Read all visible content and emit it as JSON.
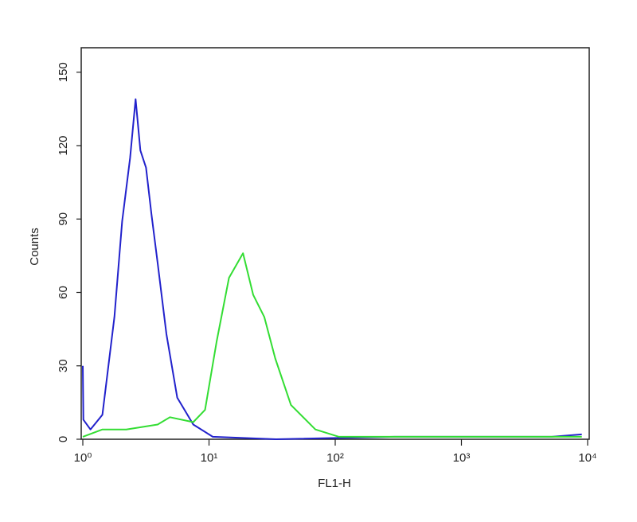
{
  "chart_data": {
    "type": "line",
    "xlabel": "FL1-H",
    "ylabel": "Counts",
    "xscale": "log",
    "xlim": [
      1,
      10000
    ],
    "ylim": [
      0,
      160
    ],
    "xticks": [
      {
        "value": 1,
        "label": "10⁰"
      },
      {
        "value": 10,
        "label": "10¹"
      },
      {
        "value": 100,
        "label": "10²"
      },
      {
        "value": 1000,
        "label": "10³"
      },
      {
        "value": 10000,
        "label": "10⁴"
      }
    ],
    "yticks": [
      0,
      30,
      60,
      90,
      120,
      150
    ],
    "series": [
      {
        "color": "#2222cc",
        "x": [
          1.0,
          1.01,
          1.15,
          1.43,
          1.78,
          2.05,
          2.37,
          2.62,
          2.86,
          3.17,
          3.5,
          3.92,
          4.6,
          5.6,
          7.5,
          10.7,
          34,
          295,
          5200,
          9000
        ],
        "values": [
          30,
          8,
          4,
          10,
          50,
          89,
          115,
          139,
          118,
          111,
          92,
          72,
          43,
          17,
          6,
          1,
          0,
          1,
          1,
          2
        ]
      },
      {
        "color": "#33dd33",
        "x": [
          1.0,
          1.43,
          2.21,
          3.92,
          4.9,
          7.5,
          9.3,
          11.5,
          14.4,
          18.6,
          22.4,
          27.4,
          33.5,
          44.6,
          69.6,
          107,
          1240,
          9000
        ],
        "values": [
          1,
          4,
          4,
          6,
          9,
          7,
          12,
          40,
          66,
          76,
          59,
          50,
          33,
          14,
          4,
          1,
          1,
          1
        ]
      }
    ]
  }
}
